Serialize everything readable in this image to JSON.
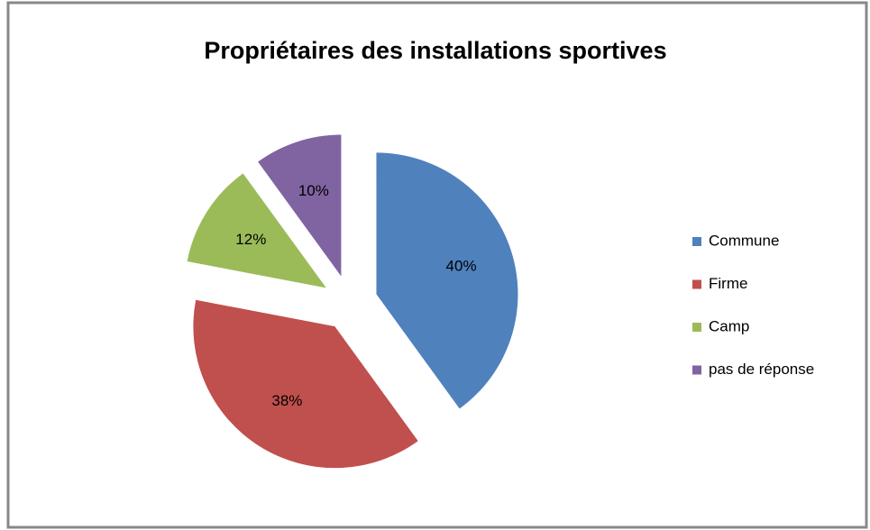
{
  "chart_data": {
    "type": "pie",
    "title": "Propriétaires des installations sportives",
    "categories": [
      "Commune",
      "Firme",
      "Camp",
      "pas de réponse"
    ],
    "values": [
      40,
      38,
      12,
      10
    ],
    "value_labels": [
      "40%",
      "38%",
      "12%",
      "10%"
    ],
    "colors": [
      "#4f81bd",
      "#c0504d",
      "#9bbb59",
      "#8064a2"
    ],
    "legend": "right"
  }
}
